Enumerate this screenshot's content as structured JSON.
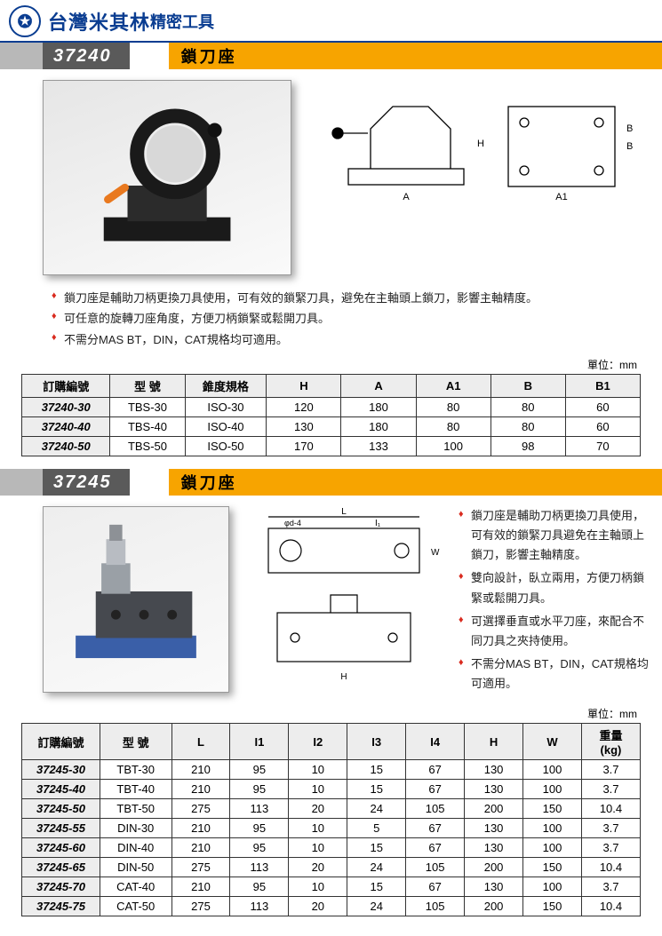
{
  "brand": {
    "name": "台灣米其林",
    "sub": "精密工具"
  },
  "colors": {
    "blue": "#0a3d91",
    "orange": "#f7a400",
    "darkgray": "#5a5a5a",
    "lightgray": "#b8b8b8",
    "red": "#d92b1f",
    "border": "#333333",
    "th_bg": "#ededed"
  },
  "section1": {
    "code": "37240",
    "title": "鎖刀座",
    "bullets": [
      "鎖刀座是輔助刀柄更換刀具使用，可有效的鎖緊刀具，避免在主軸頭上鎖刀，影響主軸精度。",
      "可任意的旋轉刀座角度，方便刀柄鎖緊或鬆開刀具。",
      "不需分MAS BT，DIN，CAT規格均可適用。"
    ],
    "unit": "單位：mm",
    "table": {
      "columns": [
        "訂購編號",
        "型  號",
        "錐度規格",
        "H",
        "A",
        "A1",
        "B",
        "B1"
      ],
      "col_widths": [
        "13%",
        "11%",
        "12%",
        "11%",
        "11%",
        "11%",
        "11%",
        "11%"
      ],
      "rows": [
        [
          "37240-30",
          "TBS-30",
          "ISO-30",
          "120",
          "180",
          "80",
          "80",
          "60"
        ],
        [
          "37240-40",
          "TBS-40",
          "ISO-40",
          "130",
          "180",
          "80",
          "80",
          "60"
        ],
        [
          "37240-50",
          "TBS-50",
          "ISO-50",
          "170",
          "133",
          "100",
          "98",
          "70"
        ]
      ]
    }
  },
  "section2": {
    "code": "37245",
    "title": "鎖刀座",
    "bullets": [
      "鎖刀座是輔助刀柄更換刀具使用，可有效的鎖緊刀具避免在主軸頭上鎖刀，影響主軸精度。",
      "雙向設計，臥立兩用，方便刀柄鎖緊或鬆開刀具。",
      "可選擇垂直或水平刀座，來配合不同刀具之夾持使用。",
      "不需分MAS BT，DIN，CAT規格均可適用。"
    ],
    "unit": "單位：mm",
    "table": {
      "columns": [
        "訂購編號",
        "型  號",
        "L",
        "I1",
        "I2",
        "I3",
        "I4",
        "H",
        "W",
        "重量\n(kg)"
      ],
      "col_widths": [
        "12%",
        "11%",
        "9%",
        "9%",
        "9%",
        "9%",
        "9%",
        "9%",
        "9%",
        "9%"
      ],
      "rows": [
        [
          "37245-30",
          "TBT-30",
          "210",
          "95",
          "10",
          "15",
          "67",
          "130",
          "100",
          "3.7"
        ],
        [
          "37245-40",
          "TBT-40",
          "210",
          "95",
          "10",
          "15",
          "67",
          "130",
          "100",
          "3.7"
        ],
        [
          "37245-50",
          "TBT-50",
          "275",
          "113",
          "20",
          "24",
          "105",
          "200",
          "150",
          "10.4"
        ],
        [
          "37245-55",
          "DIN-30",
          "210",
          "95",
          "10",
          "5",
          "67",
          "130",
          "100",
          "3.7"
        ],
        [
          "37245-60",
          "DIN-40",
          "210",
          "95",
          "10",
          "15",
          "67",
          "130",
          "100",
          "3.7"
        ],
        [
          "37245-65",
          "DIN-50",
          "275",
          "113",
          "20",
          "24",
          "105",
          "200",
          "150",
          "10.4"
        ],
        [
          "37245-70",
          "CAT-40",
          "210",
          "95",
          "10",
          "15",
          "67",
          "130",
          "100",
          "3.7"
        ],
        [
          "37245-75",
          "CAT-50",
          "275",
          "113",
          "20",
          "24",
          "105",
          "200",
          "150",
          "10.4"
        ]
      ]
    }
  }
}
